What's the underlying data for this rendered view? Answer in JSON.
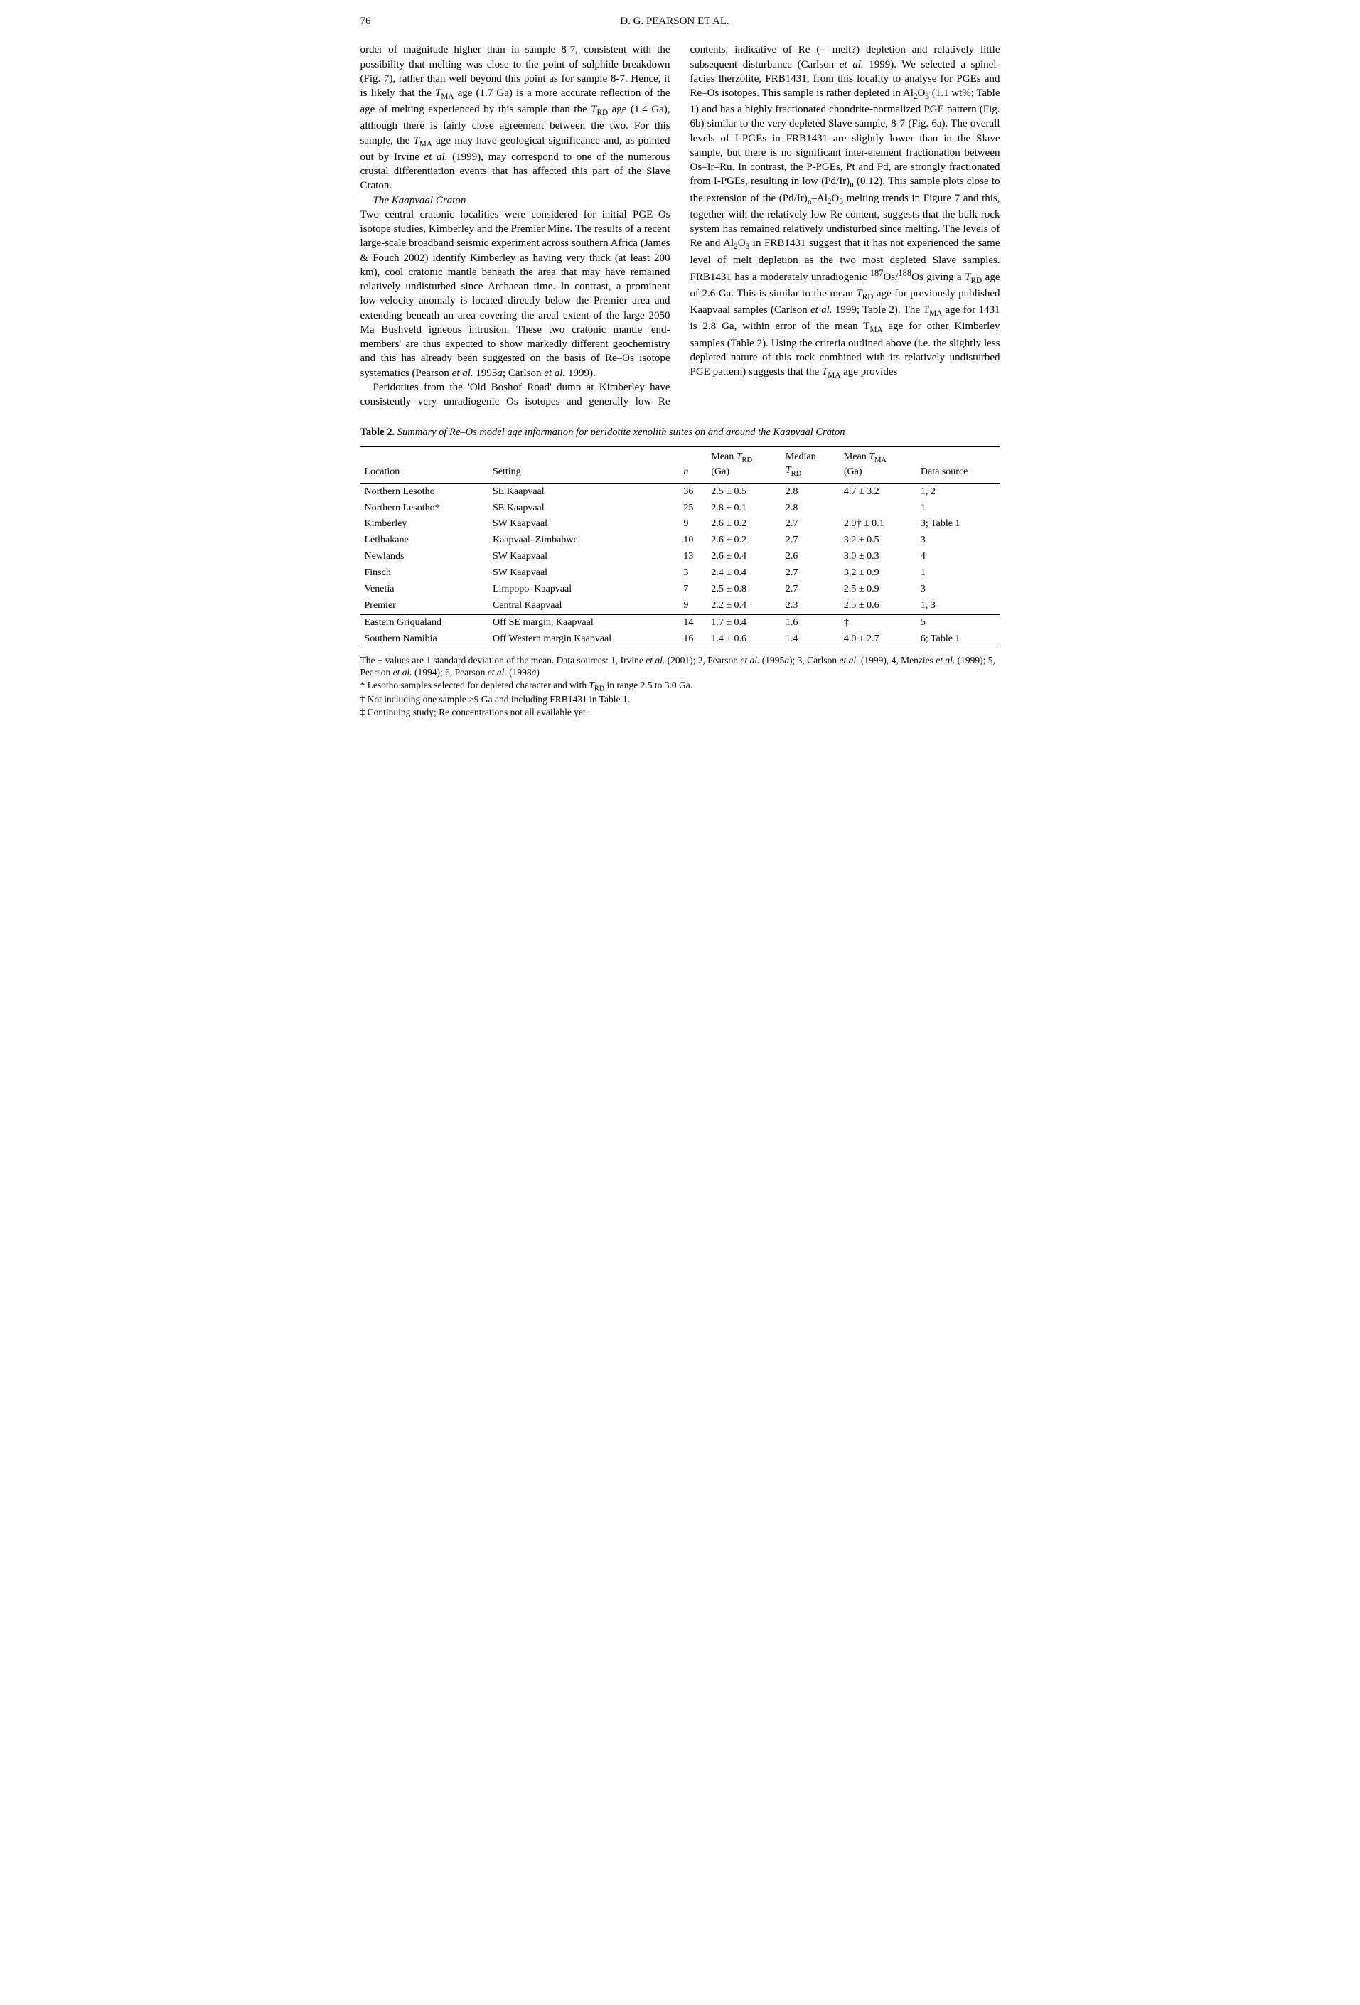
{
  "page_number": "76",
  "running_head": "D. G. PEARSON ET AL.",
  "col1_p1": "order of magnitude higher than in sample 8-7, consistent with the possibility that melting was close to the point of sulphide breakdown (Fig. 7), rather than well beyond this point as for sample 8-7. Hence, it is likely that the T_MA age (1.7 Ga) is a more accurate reflection of the age of melting experienced by this sample than the T_RD age (1.4 Ga), although there is fairly close agreement between the two. For this sample, the T_MA age may have geological significance and, as pointed out by Irvine et al. (1999), may correspond to one of the numerous crustal differentiation events that has affected this part of the Slave Craton.",
  "section_head": "The Kaapvaal Craton",
  "col1_p2": "Two central cratonic localities were considered for initial PGE–Os isotope studies, Kimberley and the Premier Mine. The results of a recent large-scale broadband seismic experiment across southern Africa (James & Fouch 2002) identify Kimberley as having very thick (at least 200 km), cool cratonic mantle beneath the area that may have remained relatively undisturbed since Archaean time. In contrast, a prominent low-velocity anomaly is located directly below the Premier area and extending beneath an area covering the areal extent of the large 2050 Ma Bushveld igneous intrusion. These two cratonic mantle 'end-members' are thus expected to show markedly different geochemistry and this has already been suggested on the basis of Re–Os isotope systematics (Pearson et al. 1995a; Carlson et al. 1999).",
  "col2_p1": "Peridotites from the 'Old Boshof Road' dump at Kimberley have consistently very unradiogenic Os isotopes and generally low Re contents, indicative of Re (= melt?) depletion and relatively little subsequent disturbance (Carlson et al. 1999). We selected a spinel-facies lherzolite, FRB1431, from this locality to analyse for PGEs and Re–Os isotopes. This sample is rather depleted in Al₂O₃ (1.1 wt%; Table 1) and has a highly fractionated chondrite-normalized PGE pattern (Fig. 6b) similar to the very depleted Slave sample, 8-7 (Fig. 6a). The overall levels of I-PGEs in FRB1431 are slightly lower than in the Slave sample, but there is no significant inter-element fractionation between Os–Ir–Ru. In contrast, the P-PGEs, Pt and Pd, are strongly fractionated from I-PGEs, resulting in low (Pd/Ir)ₙ (0.12). This sample plots close to the extension of the (Pd/Ir)ₙ–Al₂O₃ melting trends in Figure 7 and this, together with the relatively low Re content, suggests that the bulk-rock system has remained relatively undisturbed since melting. The levels of Re and Al₂O₃ in FRB1431 suggest that it has not experienced the same level of melt depletion as the two most depleted Slave samples. FRB1431 has a moderately unradiogenic ¹⁸⁷Os/¹⁸⁸Os giving a T_RD age of 2.6 Ga. This is similar to the mean T_RD age for previously published Kaapvaal samples (Carlson et al. 1999; Table 2). The T_MA age for 1431 is 2.8 Ga, within error of the mean T_MA age for other Kimberley samples (Table 2). Using the criteria outlined above (i.e. the slightly less depleted nature of this rock combined with its relatively undisturbed PGE pattern) suggests that the T_MA age provides",
  "table_caption_bold": "Table 2.",
  "table_caption_italic": "Summary of Re–Os model age information for peridotite xenolith suites on and around the Kaapvaal Craton",
  "table": {
    "columns": [
      "Location",
      "Setting",
      "n",
      "Mean T_RD (Ga)",
      "Median T_RD",
      "Mean T_MA (Ga)",
      "Data source"
    ],
    "rows": [
      [
        "Northern Lesotho",
        "SE Kaapvaal",
        "36",
        "2.5 ± 0.5",
        "2.8",
        "4.7 ± 3.2",
        "1, 2"
      ],
      [
        "Northern Lesotho*",
        "SE Kaapvaal",
        "25",
        "2.8 ± 0.1",
        "2.8",
        "",
        "1"
      ],
      [
        "Kimberley",
        "SW Kaapvaal",
        "9",
        "2.6 ± 0.2",
        "2.7",
        "2.9† ± 0.1",
        "3; Table 1"
      ],
      [
        "Letlhakane",
        "Kaapvaal–Zimbabwe",
        "10",
        "2.6 ± 0.2",
        "2.7",
        "3.2 ± 0.5",
        "3"
      ],
      [
        "Newlands",
        "SW Kaapvaal",
        "13",
        "2.6 ± 0.4",
        "2.6",
        "3.0 ± 0.3",
        "4"
      ],
      [
        "Finsch",
        "SW Kaapvaal",
        "3",
        "2.4 ± 0.4",
        "2.7",
        "3.2 ± 0.9",
        "1"
      ],
      [
        "Venetia",
        "Limpopo–Kaapvaal",
        "7",
        "2.5 ± 0.8",
        "2.7",
        "2.5 ± 0.9",
        "3"
      ],
      [
        "Premier",
        "Central Kaapvaal",
        "9",
        "2.2 ± 0.4",
        "2.3",
        "2.5 ± 0.6",
        "1, 3"
      ]
    ],
    "rows2": [
      [
        "Eastern Griqualand",
        "Off SE margin, Kaapvaal",
        "14",
        "1.7 ± 0.4",
        "1.6",
        "‡",
        "5"
      ],
      [
        "Southern Namibia",
        "Off Western margin Kaapvaal",
        "16",
        "1.4 ± 0.6",
        "1.4",
        "4.0 ± 2.7",
        "6; Table 1"
      ]
    ]
  },
  "footnote1": "The ± values are 1 standard deviation of the mean. Data sources: 1, Irvine et al. (2001); 2, Pearson et al. (1995a); 3, Carlson et al. (1999), 4, Menzies et al. (1999); 5, Pearson et al. (1994); 6, Pearson et al. (1998a)",
  "footnote2": "* Lesotho samples selected for depleted character and with T_RD in range 2.5 to 3.0 Ga.",
  "footnote3": "† Not including one sample >9 Ga and including FRB1431 in Table 1.",
  "footnote4": "‡ Continuing study; Re concentrations not all available yet."
}
